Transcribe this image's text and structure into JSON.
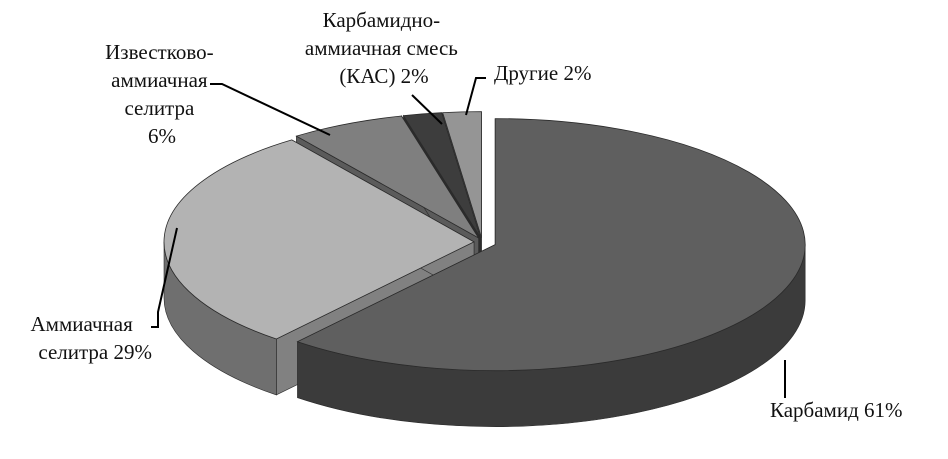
{
  "chart_data": {
    "type": "pie",
    "title": "",
    "slices": [
      {
        "name": "Карбамид",
        "value": 61,
        "color": "#5f5f5f",
        "label_lines": [
          "Карбамид  61%"
        ]
      },
      {
        "name": "Аммиачная селитра",
        "value": 29,
        "color": "#b3b3b3",
        "label_lines": [
          "Аммиачная",
          "селитра 29%"
        ]
      },
      {
        "name": "Известково-аммиачная селитра",
        "value": 6,
        "color": "#7f7f7f",
        "label_lines": [
          "Известково-",
          "аммиачная",
          "селитра",
          "6%"
        ]
      },
      {
        "name": "Карбамидно-аммиачная смесь (КАС)",
        "value": 2,
        "color": "#3d3d3d",
        "label_lines": [
          "Карбамидно-",
          "аммиачная смесь",
          "(КАС)  2%"
        ]
      },
      {
        "name": "Другие",
        "value": 2,
        "color": "#959595",
        "label_lines": [
          "Другие 2%"
        ]
      }
    ],
    "style": "3d-exploded",
    "legend": "none"
  }
}
